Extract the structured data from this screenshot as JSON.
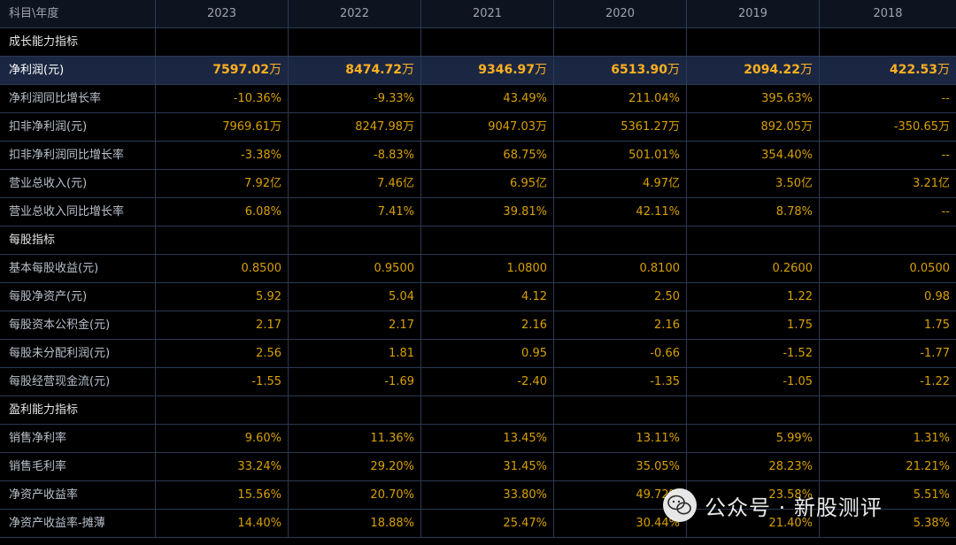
{
  "header": {
    "corner": "科目\\年度",
    "years": [
      "2023",
      "2022",
      "2021",
      "2020",
      "2019",
      "2018"
    ]
  },
  "sections": {
    "growth": "成长能力指标",
    "per_share": "每股指标",
    "profitability": "盈利能力指标"
  },
  "rows": {
    "net_profit": {
      "label": "净利润(元)",
      "values": [
        "7597.02",
        "8474.72",
        "9346.97",
        "6513.90",
        "2094.22",
        "422.53"
      ],
      "unit": "万"
    },
    "net_profit_yoy": {
      "label": "净利润同比增长率",
      "values": [
        "-10.36%",
        "-9.33%",
        "43.49%",
        "211.04%",
        "395.63%",
        "--"
      ]
    },
    "deducted_profit": {
      "label": "扣非净利润(元)",
      "values": [
        "7969.61万",
        "8247.98万",
        "9047.03万",
        "5361.27万",
        "892.05万",
        "-350.65万"
      ]
    },
    "deducted_profit_yoy": {
      "label": "扣非净利润同比增长率",
      "values": [
        "-3.38%",
        "-8.83%",
        "68.75%",
        "501.01%",
        "354.40%",
        "--"
      ]
    },
    "revenue": {
      "label": "营业总收入(元)",
      "values": [
        "7.92亿",
        "7.46亿",
        "6.95亿",
        "4.97亿",
        "3.50亿",
        "3.21亿"
      ]
    },
    "revenue_yoy": {
      "label": "营业总收入同比增长率",
      "values": [
        "6.08%",
        "7.41%",
        "39.81%",
        "42.11%",
        "8.78%",
        "--"
      ]
    },
    "eps": {
      "label": "基本每股收益(元)",
      "values": [
        "0.8500",
        "0.9500",
        "1.0800",
        "0.8100",
        "0.2600",
        "0.0500"
      ]
    },
    "bvps": {
      "label": "每股净资产(元)",
      "values": [
        "5.92",
        "5.04",
        "4.12",
        "2.50",
        "1.22",
        "0.98"
      ]
    },
    "capital_reserve_ps": {
      "label": "每股资本公积金(元)",
      "values": [
        "2.17",
        "2.17",
        "2.16",
        "2.16",
        "1.75",
        "1.75"
      ]
    },
    "undistributed_ps": {
      "label": "每股未分配利润(元)",
      "values": [
        "2.56",
        "1.81",
        "0.95",
        "-0.66",
        "-1.52",
        "-1.77"
      ]
    },
    "ocf_ps": {
      "label": "每股经营现金流(元)",
      "values": [
        "-1.55",
        "-1.69",
        "-2.40",
        "-1.35",
        "-1.05",
        "-1.22"
      ]
    },
    "net_margin": {
      "label": "销售净利率",
      "values": [
        "9.60%",
        "11.36%",
        "13.45%",
        "13.11%",
        "5.99%",
        "1.31%"
      ]
    },
    "gross_margin": {
      "label": "销售毛利率",
      "values": [
        "33.24%",
        "29.20%",
        "31.45%",
        "35.05%",
        "28.23%",
        "21.21%"
      ]
    },
    "roe": {
      "label": "净资产收益率",
      "values": [
        "15.56%",
        "20.70%",
        "33.80%",
        "49.72%",
        "23.58%",
        "5.51%"
      ]
    },
    "roe_diluted": {
      "label": "净资产收益率-摊薄",
      "values": [
        "14.40%",
        "18.88%",
        "25.47%",
        "30.44%",
        "21.40%",
        "5.38%"
      ]
    }
  },
  "watermark": {
    "text": "公众号 · 新股测评"
  }
}
